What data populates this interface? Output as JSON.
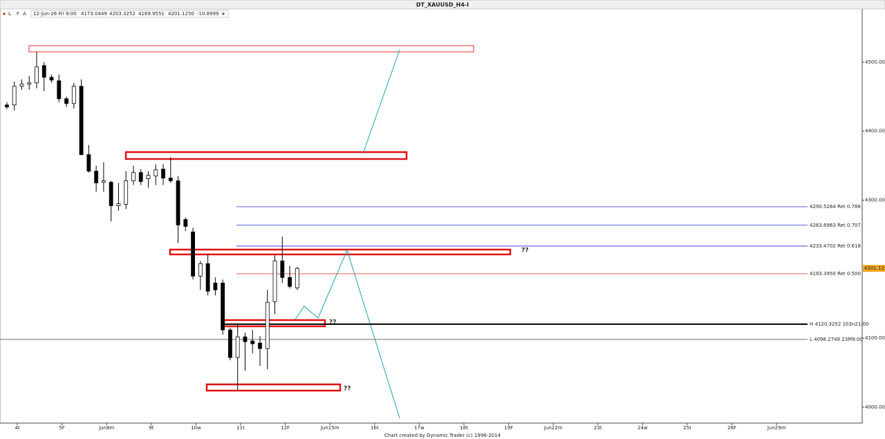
{
  "chart_data": {
    "type": "candlestick",
    "title": "DT_XAUUSD_H4-I",
    "toolbar": [
      "L",
      "F",
      "A"
    ],
    "status": {
      "datetime": "12-Jun-26 Fri 9:00",
      "open": "4173.0449",
      "high": "4203.3252",
      "low": "4169.9551",
      "close": "4201.1250",
      "change": "-10.8999"
    },
    "footer": "Chart created by Dynamic Trader  (c)  1996-2014",
    "categories": [
      "4t",
      "5F",
      "Jun8m",
      "9t",
      "10w",
      "11t",
      "12F",
      "Jun15m",
      "16t",
      "17w",
      "18t",
      "19F",
      "Jun22m",
      "23t",
      "24w",
      "25t",
      "26F",
      "Jun29m"
    ],
    "candles": {
      "open": [
        4438,
        4438,
        4465,
        4468,
        4470,
        4495,
        4478,
        4473,
        4447,
        4440,
        4465,
        4366,
        4342,
        4326,
        4326,
        4292,
        4294,
        4328,
        4340,
        4331,
        4335,
        4345,
        4332,
        4328,
        4272,
        4254,
        4190,
        4208,
        4180,
        4180,
        4112,
        4072,
        4102,
        4096,
        4093,
        4085,
        4153,
        4212,
        4188,
        4173.0449
      ],
      "high": [
        4442,
        4472,
        4475,
        4480,
        4515,
        4500,
        4482,
        4482,
        4450,
        4470,
        4475,
        4380,
        4350,
        4355,
        4328,
        4325,
        4342,
        4350,
        4345,
        4342,
        4352,
        4352,
        4362,
        4335,
        4275,
        4260,
        4212,
        4222,
        4188,
        4185,
        4115,
        4120,
        4108,
        4112,
        4103,
        4170,
        4220,
        4247,
        4205,
        4203.3252
      ],
      "low": [
        4432,
        4430,
        4460,
        4460,
        4462,
        4458,
        4470,
        4442,
        4435,
        4433,
        4365,
        4340,
        4312,
        4312,
        4269,
        4285,
        4287,
        4322,
        4322,
        4318,
        4322,
        4322,
        4325,
        4238,
        4255,
        4185,
        4170,
        4162,
        4162,
        4105,
        4068,
        4025,
        4053,
        4078,
        4060,
        4055,
        4135,
        4180,
        4172,
        4169.9551
      ],
      "close": [
        4435,
        4465,
        4468,
        4470,
        4493,
        4478,
        4474,
        4447,
        4440,
        4465,
        4366,
        4342,
        4325,
        4328,
        4292,
        4295,
        4328,
        4340,
        4327,
        4336,
        4344,
        4332,
        4328,
        4264,
        4262,
        4190,
        4208,
        4168,
        4170,
        4112,
        4072,
        4102,
        4095,
        4092,
        4085,
        4152,
        4212,
        4188,
        4175,
        4201.125
      ]
    },
    "up_color": "#ffffff",
    "down_color": "#000000",
    "ylim": [
      3977,
      4578
    ],
    "yticks": [
      {
        "value": 4000,
        "label": "4000.0000"
      },
      {
        "value": 4100,
        "label": "4100.0000"
      },
      {
        "value": 4300,
        "label": "4300.0000"
      },
      {
        "value": 4400,
        "label": "4400.0000"
      },
      {
        "value": 4500,
        "label": "4500.0000"
      }
    ],
    "levels": [
      {
        "value": 4290.5264,
        "label": "4290.5264 Ret 0.786",
        "color": "#2222cc"
      },
      {
        "value": 4263.6963,
        "label": "4263.6963 Ret 0.707",
        "color": "#2222cc"
      },
      {
        "value": 4233.4702,
        "label": "4233.4702 Ret 0.618",
        "color": "#2222cc"
      },
      {
        "value": 4193.395,
        "label": "4193.3950 Ret 0.500",
        "color": "#dd2222"
      }
    ],
    "high_line": {
      "value": 4120.3252,
      "label": "H 4120.3252 103n21:00"
    },
    "low_line": {
      "value": 4098.2749,
      "label": "L 4098.2749 23M9:00"
    },
    "last_price": {
      "value": 4201.125,
      "label": "4201.1250"
    },
    "annotations": [
      "??",
      "??",
      "??"
    ]
  }
}
